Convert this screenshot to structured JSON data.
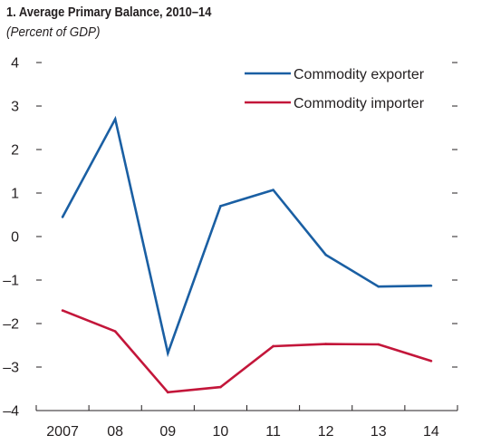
{
  "chart_data": {
    "type": "line",
    "title": "1. Average Primary Balance, 2010–14",
    "subtitle": "(Percent of GDP)",
    "xlabel": "",
    "ylabel": "",
    "categories": [
      "2007",
      "08",
      "09",
      "10",
      "11",
      "12",
      "13",
      "14"
    ],
    "ylim": [
      -4,
      4
    ],
    "yticks": [
      4,
      3,
      2,
      1,
      0,
      -1,
      -2,
      -3,
      -4
    ],
    "ytick_labels": [
      "4",
      "3",
      "2",
      "1",
      "0",
      "–1",
      "–2",
      "–3",
      "–4"
    ],
    "grid": false,
    "legend_position": "top-right",
    "series": [
      {
        "name": "Commodity exporter",
        "color": "#1a5fa3",
        "values": [
          0.45,
          2.7,
          -2.68,
          0.7,
          1.07,
          -0.42,
          -1.15,
          -1.13
        ]
      },
      {
        "name": "Commodity importer",
        "color": "#c3163a",
        "values": [
          -1.7,
          -2.18,
          -3.58,
          -3.46,
          -2.52,
          -2.47,
          -2.48,
          -2.86
        ]
      }
    ]
  }
}
